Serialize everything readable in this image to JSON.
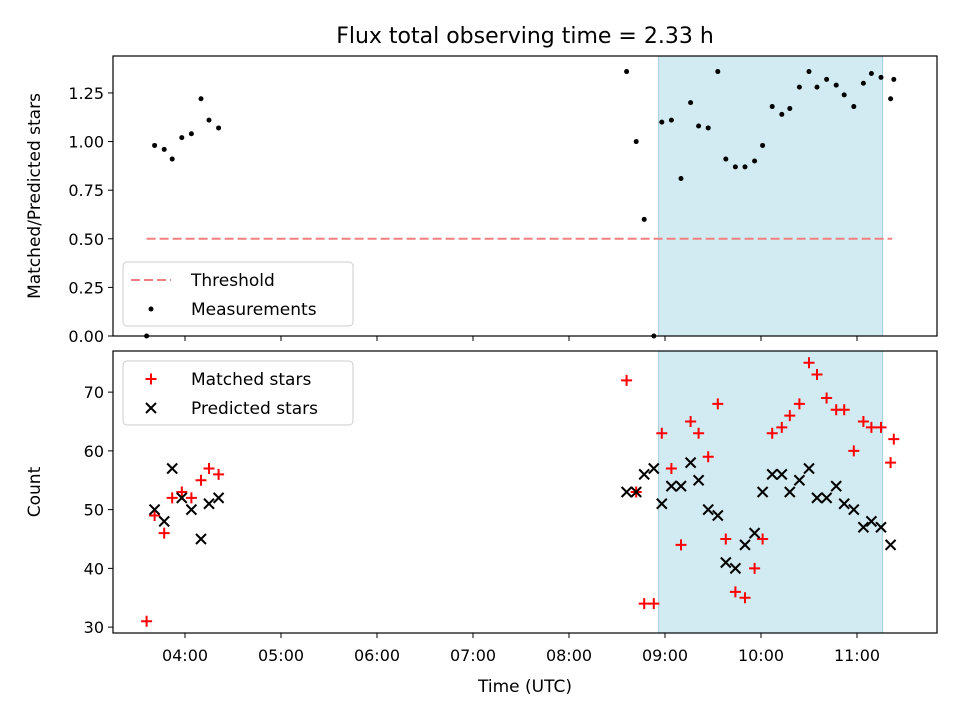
{
  "title": "Flux total observing time = 2.33 h",
  "chart_data": [
    {
      "type": "scatter",
      "ylabel": "Matched/Predicted stars",
      "ylim": [
        0,
        1.44
      ],
      "yticks": [
        0.0,
        0.25,
        0.5,
        0.75,
        1.0,
        1.25
      ],
      "ytick_labels": [
        "0.00",
        "0.25",
        "0.50",
        "0.75",
        "1.00",
        "1.25"
      ],
      "xlim": [
        "03:15",
        "11:50"
      ],
      "shaded_span": [
        "08:56",
        "11:16"
      ],
      "shaded_color": "#add8e6",
      "legend_position": "lower-left",
      "series": [
        {
          "name": "Threshold",
          "kind": "dashed-line",
          "color": "#f08080",
          "x": [
            "03:36",
            "11:22"
          ],
          "y": [
            0.5,
            0.5
          ]
        },
        {
          "name": "Measurements",
          "kind": "dot",
          "color": "#000000",
          "x": [
            "03:36",
            "03:41",
            "03:47",
            "03:52",
            "03:58",
            "04:04",
            "04:10",
            "04:15",
            "04:21",
            "08:36",
            "08:42",
            "08:47",
            "08:53",
            "08:58",
            "09:04",
            "09:10",
            "09:16",
            "09:21",
            "09:27",
            "09:33",
            "09:38",
            "09:44",
            "09:50",
            "09:56",
            "10:01",
            "10:07",
            "10:13",
            "10:18",
            "10:24",
            "10:30",
            "10:35",
            "10:41",
            "10:47",
            "10:52",
            "10:58",
            "11:04",
            "11:09",
            "11:15",
            "11:21",
            "11:23"
          ],
          "y": [
            0.0,
            0.98,
            0.96,
            0.91,
            1.02,
            1.04,
            1.22,
            1.11,
            1.07,
            1.36,
            1.0,
            0.6,
            0.0,
            1.1,
            1.11,
            0.81,
            1.2,
            1.08,
            1.07,
            1.36,
            0.91,
            0.87,
            0.87,
            0.9,
            0.98,
            1.18,
            1.14,
            1.17,
            1.28,
            1.36,
            1.28,
            1.32,
            1.29,
            1.24,
            1.18,
            1.3,
            1.35,
            1.33,
            1.22,
            1.32
          ]
        }
      ]
    },
    {
      "type": "scatter",
      "xlabel": "Time (UTC)",
      "ylabel": "Count",
      "ylim": [
        29,
        77
      ],
      "yticks": [
        30,
        40,
        50,
        60,
        70
      ],
      "xlim": [
        "03:15",
        "11:50"
      ],
      "xticks": [
        "04:00",
        "05:00",
        "06:00",
        "07:00",
        "08:00",
        "09:00",
        "10:00",
        "11:00"
      ],
      "shaded_span": [
        "08:56",
        "11:16"
      ],
      "shaded_color": "#add8e6",
      "legend_position": "upper-left",
      "series": [
        {
          "name": "Matched stars",
          "kind": "plus",
          "color": "#ff0000",
          "x": [
            "03:36",
            "03:41",
            "03:47",
            "03:52",
            "03:58",
            "04:04",
            "04:10",
            "04:15",
            "04:21",
            "08:36",
            "08:42",
            "08:47",
            "08:53",
            "08:58",
            "09:04",
            "09:10",
            "09:16",
            "09:21",
            "09:27",
            "09:33",
            "09:38",
            "09:44",
            "09:50",
            "09:56",
            "10:01",
            "10:07",
            "10:13",
            "10:18",
            "10:24",
            "10:30",
            "10:35",
            "10:41",
            "10:47",
            "10:52",
            "10:58",
            "11:04",
            "11:09",
            "11:15",
            "11:21",
            "11:23"
          ],
          "y": [
            31,
            49,
            46,
            52,
            53,
            52,
            55,
            57,
            56,
            72,
            53,
            34,
            34,
            63,
            57,
            44,
            65,
            63,
            59,
            68,
            45,
            36,
            35,
            40,
            45,
            63,
            64,
            66,
            68,
            75,
            73,
            69,
            67,
            67,
            60,
            65,
            64,
            64,
            58,
            62
          ]
        },
        {
          "name": "Predicted stars",
          "kind": "x",
          "color": "#000000",
          "x": [
            "03:41",
            "03:47",
            "03:52",
            "03:58",
            "04:04",
            "04:10",
            "04:15",
            "04:21",
            "08:36",
            "08:42",
            "08:47",
            "08:53",
            "08:58",
            "09:04",
            "09:10",
            "09:16",
            "09:21",
            "09:27",
            "09:33",
            "09:38",
            "09:44",
            "09:50",
            "09:56",
            "10:01",
            "10:07",
            "10:13",
            "10:18",
            "10:24",
            "10:30",
            "10:35",
            "10:41",
            "10:47",
            "10:52",
            "10:58",
            "11:04",
            "11:09",
            "11:15",
            "11:21"
          ],
          "y": [
            50,
            48,
            57,
            52,
            50,
            45,
            51,
            52,
            53,
            53,
            56,
            57,
            51,
            54,
            54,
            58,
            55,
            50,
            49,
            41,
            40,
            44,
            46,
            53,
            56,
            56,
            53,
            55,
            57,
            52,
            52,
            54,
            51,
            50,
            47,
            48,
            47,
            44
          ]
        }
      ]
    }
  ]
}
